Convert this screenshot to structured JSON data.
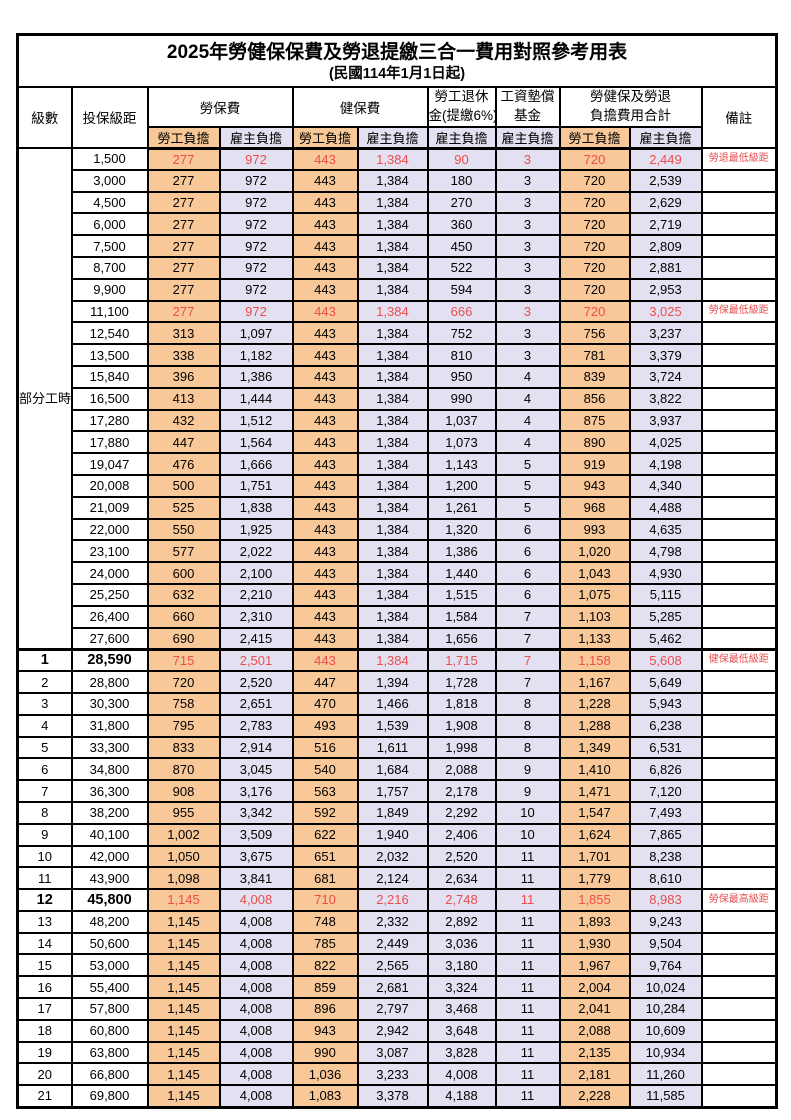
{
  "title": "2025年勞健保保費及勞退提繳三合一費用對照參考用表",
  "subtitle": "(民國114年1月1日起)",
  "columns": {
    "level": "級數",
    "bracket": "投保級距",
    "labor_insurance": "勞保費",
    "health_insurance": "健保費",
    "pension_line1": "勞工退休",
    "pension_line2": "金(提繳6%)",
    "wage_fund_line1": "工資墊償",
    "wage_fund_line2": "基金",
    "total_line1": "勞健保及勞退",
    "total_line2": "負擔費用合計",
    "employee": "勞工負擔",
    "employer": "雇主負擔",
    "remark": "備註"
  },
  "part_time_label": "部分工時",
  "part_time_rowspan": 23,
  "colors": {
    "employee_bg": "#F8C898",
    "employer_bg": "#E3E1F1",
    "highlight_text": "#EC4D4D",
    "border": "#000000"
  },
  "rows": [
    {
      "pt": true,
      "lv": "",
      "br": "1,500",
      "a": "277",
      "b": "972",
      "c": "443",
      "d": "1,384",
      "e": "90",
      "f": "3",
      "g": "720",
      "h": "2,449",
      "rm": "勞退最低級距",
      "hl": true,
      "big": false
    },
    {
      "pt": true,
      "lv": "",
      "br": "3,000",
      "a": "277",
      "b": "972",
      "c": "443",
      "d": "1,384",
      "e": "180",
      "f": "3",
      "g": "720",
      "h": "2,539",
      "rm": "",
      "hl": false,
      "big": false
    },
    {
      "pt": true,
      "lv": "",
      "br": "4,500",
      "a": "277",
      "b": "972",
      "c": "443",
      "d": "1,384",
      "e": "270",
      "f": "3",
      "g": "720",
      "h": "2,629",
      "rm": "",
      "hl": false,
      "big": false
    },
    {
      "pt": true,
      "lv": "",
      "br": "6,000",
      "a": "277",
      "b": "972",
      "c": "443",
      "d": "1,384",
      "e": "360",
      "f": "3",
      "g": "720",
      "h": "2,719",
      "rm": "",
      "hl": false,
      "big": false
    },
    {
      "pt": true,
      "lv": "",
      "br": "7,500",
      "a": "277",
      "b": "972",
      "c": "443",
      "d": "1,384",
      "e": "450",
      "f": "3",
      "g": "720",
      "h": "2,809",
      "rm": "",
      "hl": false,
      "big": false
    },
    {
      "pt": true,
      "lv": "",
      "br": "8,700",
      "a": "277",
      "b": "972",
      "c": "443",
      "d": "1,384",
      "e": "522",
      "f": "3",
      "g": "720",
      "h": "2,881",
      "rm": "",
      "hl": false,
      "big": false
    },
    {
      "pt": true,
      "lv": "",
      "br": "9,900",
      "a": "277",
      "b": "972",
      "c": "443",
      "d": "1,384",
      "e": "594",
      "f": "3",
      "g": "720",
      "h": "2,953",
      "rm": "",
      "hl": false,
      "big": false
    },
    {
      "pt": true,
      "lv": "",
      "br": "11,100",
      "a": "277",
      "b": "972",
      "c": "443",
      "d": "1,384",
      "e": "666",
      "f": "3",
      "g": "720",
      "h": "3,025",
      "rm": "勞保最低級距",
      "hl": true,
      "big": false
    },
    {
      "pt": true,
      "lv": "",
      "br": "12,540",
      "a": "313",
      "b": "1,097",
      "c": "443",
      "d": "1,384",
      "e": "752",
      "f": "3",
      "g": "756",
      "h": "3,237",
      "rm": "",
      "hl": false,
      "big": false
    },
    {
      "pt": true,
      "lv": "",
      "br": "13,500",
      "a": "338",
      "b": "1,182",
      "c": "443",
      "d": "1,384",
      "e": "810",
      "f": "3",
      "g": "781",
      "h": "3,379",
      "rm": "",
      "hl": false,
      "big": false
    },
    {
      "pt": true,
      "lv": "",
      "br": "15,840",
      "a": "396",
      "b": "1,386",
      "c": "443",
      "d": "1,384",
      "e": "950",
      "f": "4",
      "g": "839",
      "h": "3,724",
      "rm": "",
      "hl": false,
      "big": false
    },
    {
      "pt": true,
      "lv": "",
      "br": "16,500",
      "a": "413",
      "b": "1,444",
      "c": "443",
      "d": "1,384",
      "e": "990",
      "f": "4",
      "g": "856",
      "h": "3,822",
      "rm": "",
      "hl": false,
      "big": false
    },
    {
      "pt": true,
      "lv": "",
      "br": "17,280",
      "a": "432",
      "b": "1,512",
      "c": "443",
      "d": "1,384",
      "e": "1,037",
      "f": "4",
      "g": "875",
      "h": "3,937",
      "rm": "",
      "hl": false,
      "big": false
    },
    {
      "pt": true,
      "lv": "",
      "br": "17,880",
      "a": "447",
      "b": "1,564",
      "c": "443",
      "d": "1,384",
      "e": "1,073",
      "f": "4",
      "g": "890",
      "h": "4,025",
      "rm": "",
      "hl": false,
      "big": false
    },
    {
      "pt": true,
      "lv": "",
      "br": "19,047",
      "a": "476",
      "b": "1,666",
      "c": "443",
      "d": "1,384",
      "e": "1,143",
      "f": "5",
      "g": "919",
      "h": "4,198",
      "rm": "",
      "hl": false,
      "big": false
    },
    {
      "pt": true,
      "lv": "",
      "br": "20,008",
      "a": "500",
      "b": "1,751",
      "c": "443",
      "d": "1,384",
      "e": "1,200",
      "f": "5",
      "g": "943",
      "h": "4,340",
      "rm": "",
      "hl": false,
      "big": false
    },
    {
      "pt": true,
      "lv": "",
      "br": "21,009",
      "a": "525",
      "b": "1,838",
      "c": "443",
      "d": "1,384",
      "e": "1,261",
      "f": "5",
      "g": "968",
      "h": "4,488",
      "rm": "",
      "hl": false,
      "big": false
    },
    {
      "pt": true,
      "lv": "",
      "br": "22,000",
      "a": "550",
      "b": "1,925",
      "c": "443",
      "d": "1,384",
      "e": "1,320",
      "f": "6",
      "g": "993",
      "h": "4,635",
      "rm": "",
      "hl": false,
      "big": false
    },
    {
      "pt": true,
      "lv": "",
      "br": "23,100",
      "a": "577",
      "b": "2,022",
      "c": "443",
      "d": "1,384",
      "e": "1,386",
      "f": "6",
      "g": "1,020",
      "h": "4,798",
      "rm": "",
      "hl": false,
      "big": false
    },
    {
      "pt": true,
      "lv": "",
      "br": "24,000",
      "a": "600",
      "b": "2,100",
      "c": "443",
      "d": "1,384",
      "e": "1,440",
      "f": "6",
      "g": "1,043",
      "h": "4,930",
      "rm": "",
      "hl": false,
      "big": false
    },
    {
      "pt": true,
      "lv": "",
      "br": "25,250",
      "a": "632",
      "b": "2,210",
      "c": "443",
      "d": "1,384",
      "e": "1,515",
      "f": "6",
      "g": "1,075",
      "h": "5,115",
      "rm": "",
      "hl": false,
      "big": false
    },
    {
      "pt": true,
      "lv": "",
      "br": "26,400",
      "a": "660",
      "b": "2,310",
      "c": "443",
      "d": "1,384",
      "e": "1,584",
      "f": "7",
      "g": "1,103",
      "h": "5,285",
      "rm": "",
      "hl": false,
      "big": false
    },
    {
      "pt": true,
      "lv": "",
      "br": "27,600",
      "a": "690",
      "b": "2,415",
      "c": "443",
      "d": "1,384",
      "e": "1,656",
      "f": "7",
      "g": "1,133",
      "h": "5,462",
      "rm": "",
      "hl": false,
      "big": false
    },
    {
      "pt": false,
      "lv": "1",
      "br": "28,590",
      "a": "715",
      "b": "2,501",
      "c": "443",
      "d": "1,384",
      "e": "1,715",
      "f": "7",
      "g": "1,158",
      "h": "5,608",
      "rm": "健保最低級距",
      "hl": true,
      "big": true
    },
    {
      "pt": false,
      "lv": "2",
      "br": "28,800",
      "a": "720",
      "b": "2,520",
      "c": "447",
      "d": "1,394",
      "e": "1,728",
      "f": "7",
      "g": "1,167",
      "h": "5,649",
      "rm": "",
      "hl": false,
      "big": false
    },
    {
      "pt": false,
      "lv": "3",
      "br": "30,300",
      "a": "758",
      "b": "2,651",
      "c": "470",
      "d": "1,466",
      "e": "1,818",
      "f": "8",
      "g": "1,228",
      "h": "5,943",
      "rm": "",
      "hl": false,
      "big": false
    },
    {
      "pt": false,
      "lv": "4",
      "br": "31,800",
      "a": "795",
      "b": "2,783",
      "c": "493",
      "d": "1,539",
      "e": "1,908",
      "f": "8",
      "g": "1,288",
      "h": "6,238",
      "rm": "",
      "hl": false,
      "big": false
    },
    {
      "pt": false,
      "lv": "5",
      "br": "33,300",
      "a": "833",
      "b": "2,914",
      "c": "516",
      "d": "1,611",
      "e": "1,998",
      "f": "8",
      "g": "1,349",
      "h": "6,531",
      "rm": "",
      "hl": false,
      "big": false
    },
    {
      "pt": false,
      "lv": "6",
      "br": "34,800",
      "a": "870",
      "b": "3,045",
      "c": "540",
      "d": "1,684",
      "e": "2,088",
      "f": "9",
      "g": "1,410",
      "h": "6,826",
      "rm": "",
      "hl": false,
      "big": false
    },
    {
      "pt": false,
      "lv": "7",
      "br": "36,300",
      "a": "908",
      "b": "3,176",
      "c": "563",
      "d": "1,757",
      "e": "2,178",
      "f": "9",
      "g": "1,471",
      "h": "7,120",
      "rm": "",
      "hl": false,
      "big": false
    },
    {
      "pt": false,
      "lv": "8",
      "br": "38,200",
      "a": "955",
      "b": "3,342",
      "c": "592",
      "d": "1,849",
      "e": "2,292",
      "f": "10",
      "g": "1,547",
      "h": "7,493",
      "rm": "",
      "hl": false,
      "big": false
    },
    {
      "pt": false,
      "lv": "9",
      "br": "40,100",
      "a": "1,002",
      "b": "3,509",
      "c": "622",
      "d": "1,940",
      "e": "2,406",
      "f": "10",
      "g": "1,624",
      "h": "7,865",
      "rm": "",
      "hl": false,
      "big": false
    },
    {
      "pt": false,
      "lv": "10",
      "br": "42,000",
      "a": "1,050",
      "b": "3,675",
      "c": "651",
      "d": "2,032",
      "e": "2,520",
      "f": "11",
      "g": "1,701",
      "h": "8,238",
      "rm": "",
      "hl": false,
      "big": false
    },
    {
      "pt": false,
      "lv": "11",
      "br": "43,900",
      "a": "1,098",
      "b": "3,841",
      "c": "681",
      "d": "2,124",
      "e": "2,634",
      "f": "11",
      "g": "1,779",
      "h": "8,610",
      "rm": "",
      "hl": false,
      "big": false
    },
    {
      "pt": false,
      "lv": "12",
      "br": "45,800",
      "a": "1,145",
      "b": "4,008",
      "c": "710",
      "d": "2,216",
      "e": "2,748",
      "f": "11",
      "g": "1,855",
      "h": "8,983",
      "rm": "勞保最高級距",
      "hl": true,
      "big": true
    },
    {
      "pt": false,
      "lv": "13",
      "br": "48,200",
      "a": "1,145",
      "b": "4,008",
      "c": "748",
      "d": "2,332",
      "e": "2,892",
      "f": "11",
      "g": "1,893",
      "h": "9,243",
      "rm": "",
      "hl": false,
      "big": false
    },
    {
      "pt": false,
      "lv": "14",
      "br": "50,600",
      "a": "1,145",
      "b": "4,008",
      "c": "785",
      "d": "2,449",
      "e": "3,036",
      "f": "11",
      "g": "1,930",
      "h": "9,504",
      "rm": "",
      "hl": false,
      "big": false
    },
    {
      "pt": false,
      "lv": "15",
      "br": "53,000",
      "a": "1,145",
      "b": "4,008",
      "c": "822",
      "d": "2,565",
      "e": "3,180",
      "f": "11",
      "g": "1,967",
      "h": "9,764",
      "rm": "",
      "hl": false,
      "big": false
    },
    {
      "pt": false,
      "lv": "16",
      "br": "55,400",
      "a": "1,145",
      "b": "4,008",
      "c": "859",
      "d": "2,681",
      "e": "3,324",
      "f": "11",
      "g": "2,004",
      "h": "10,024",
      "rm": "",
      "hl": false,
      "big": false
    },
    {
      "pt": false,
      "lv": "17",
      "br": "57,800",
      "a": "1,145",
      "b": "4,008",
      "c": "896",
      "d": "2,797",
      "e": "3,468",
      "f": "11",
      "g": "2,041",
      "h": "10,284",
      "rm": "",
      "hl": false,
      "big": false
    },
    {
      "pt": false,
      "lv": "18",
      "br": "60,800",
      "a": "1,145",
      "b": "4,008",
      "c": "943",
      "d": "2,942",
      "e": "3,648",
      "f": "11",
      "g": "2,088",
      "h": "10,609",
      "rm": "",
      "hl": false,
      "big": false
    },
    {
      "pt": false,
      "lv": "19",
      "br": "63,800",
      "a": "1,145",
      "b": "4,008",
      "c": "990",
      "d": "3,087",
      "e": "3,828",
      "f": "11",
      "g": "2,135",
      "h": "10,934",
      "rm": "",
      "hl": false,
      "big": false
    },
    {
      "pt": false,
      "lv": "20",
      "br": "66,800",
      "a": "1,145",
      "b": "4,008",
      "c": "1,036",
      "d": "3,233",
      "e": "4,008",
      "f": "11",
      "g": "2,181",
      "h": "11,260",
      "rm": "",
      "hl": false,
      "big": false
    },
    {
      "pt": false,
      "lv": "21",
      "br": "69,800",
      "a": "1,145",
      "b": "4,008",
      "c": "1,083",
      "d": "3,378",
      "e": "4,188",
      "f": "11",
      "g": "2,228",
      "h": "11,585",
      "rm": "",
      "hl": false,
      "big": false
    }
  ]
}
